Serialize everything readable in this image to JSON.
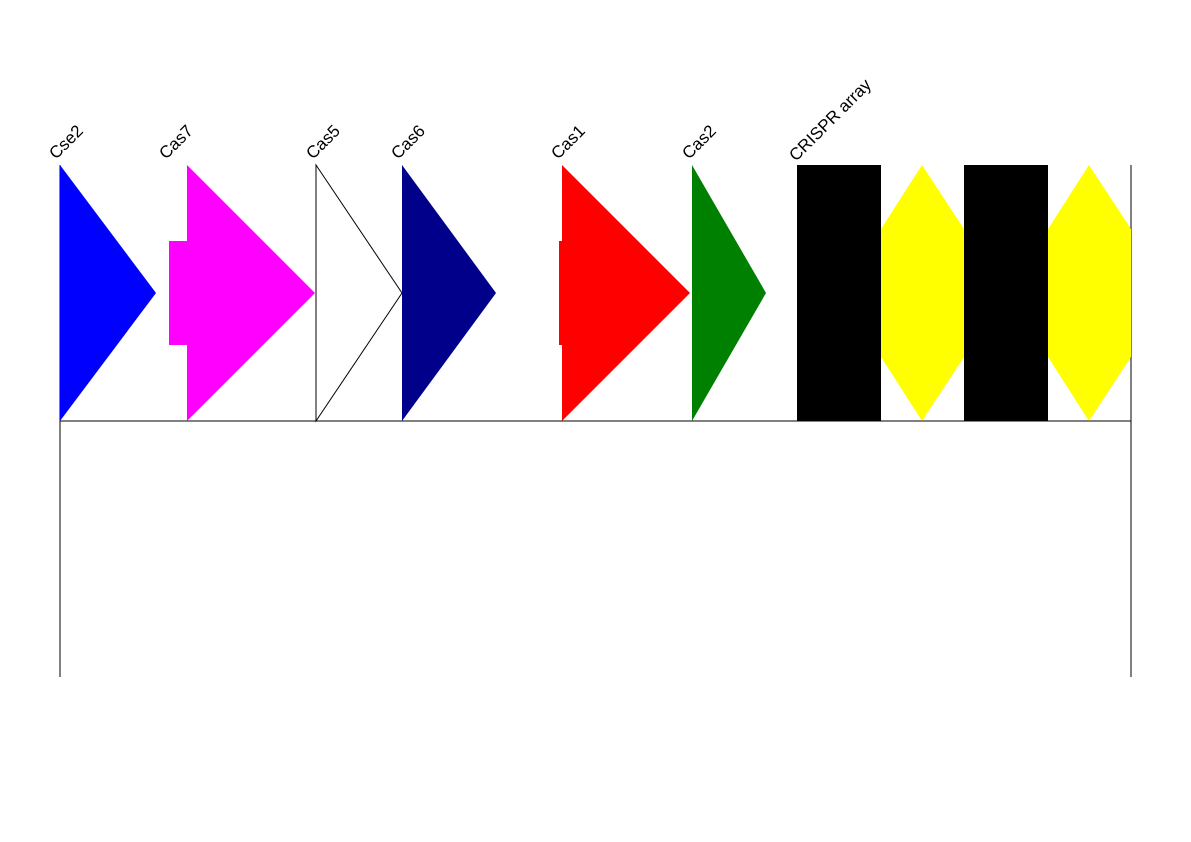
{
  "diagram": {
    "elements": [
      {
        "id": "cse2",
        "label": "Cse2",
        "type": "gene",
        "color": "#0000ff",
        "filled": true,
        "shape": "triangle-right"
      },
      {
        "id": "cas7",
        "label": "Cas7",
        "type": "gene",
        "color": "#ff00ff",
        "filled": true,
        "shape": "notched-arrow-right"
      },
      {
        "id": "cas5",
        "label": "Cas5",
        "type": "gene",
        "color": "#000000",
        "filled": false,
        "shape": "triangle-right"
      },
      {
        "id": "cas6",
        "label": "Cas6",
        "type": "gene",
        "color": "#00008b",
        "filled": true,
        "shape": "triangle-right"
      },
      {
        "id": "cas1",
        "label": "Cas1",
        "type": "gene",
        "color": "#ff0000",
        "filled": true,
        "shape": "notched-arrow-right"
      },
      {
        "id": "cas2",
        "label": "Cas2",
        "type": "gene",
        "color": "#008000",
        "filled": true,
        "shape": "triangle-right"
      },
      {
        "id": "crispr-array",
        "label": "CRISPR array",
        "type": "array",
        "repeat_color": "#000000",
        "spacer_color": "#ffff00",
        "pattern": [
          "repeat",
          "spacer",
          "repeat",
          "spacer"
        ]
      }
    ]
  }
}
